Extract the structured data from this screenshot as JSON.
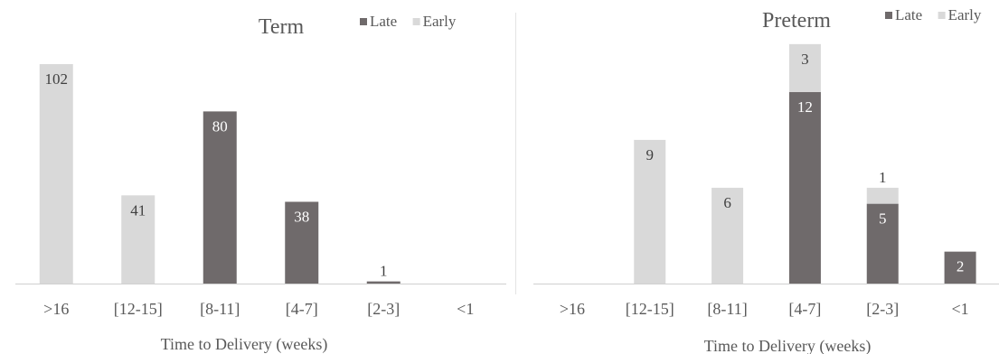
{
  "colors": {
    "late": "#6f6a6b",
    "early": "#d9d9d9",
    "axis": "#d0d0d0",
    "text": "#595959"
  },
  "chart_data": [
    {
      "type": "bar",
      "stacked": true,
      "title": "Term",
      "xlabel": "Time to Delivery (weeks)",
      "ylabel": "",
      "categories": [
        ">16",
        "[12-15]",
        "[8-11]",
        "[4-7]",
        "[2-3]",
        "<1"
      ],
      "series": [
        {
          "name": "Late",
          "values": [
            0,
            0,
            80,
            38,
            1,
            0
          ]
        },
        {
          "name": "Early",
          "values": [
            102,
            41,
            0,
            0,
            0,
            0
          ]
        }
      ],
      "ylim": [
        0,
        115
      ],
      "grid": false,
      "legend": "top-right"
    },
    {
      "type": "bar",
      "stacked": true,
      "title": "Preterm",
      "xlabel": "Time to Delivery (weeks)",
      "ylabel": "",
      "categories": [
        ">16",
        "[12-15]",
        "[8-11]",
        "[4-7]",
        "[2-3]",
        "<1"
      ],
      "series": [
        {
          "name": "Late",
          "values": [
            0,
            0,
            0,
            12,
            5,
            2
          ]
        },
        {
          "name": "Early",
          "values": [
            0,
            9,
            6,
            3,
            1,
            0
          ]
        }
      ],
      "ylim": [
        0,
        15.5
      ],
      "grid": false,
      "legend": "top-right"
    }
  ]
}
